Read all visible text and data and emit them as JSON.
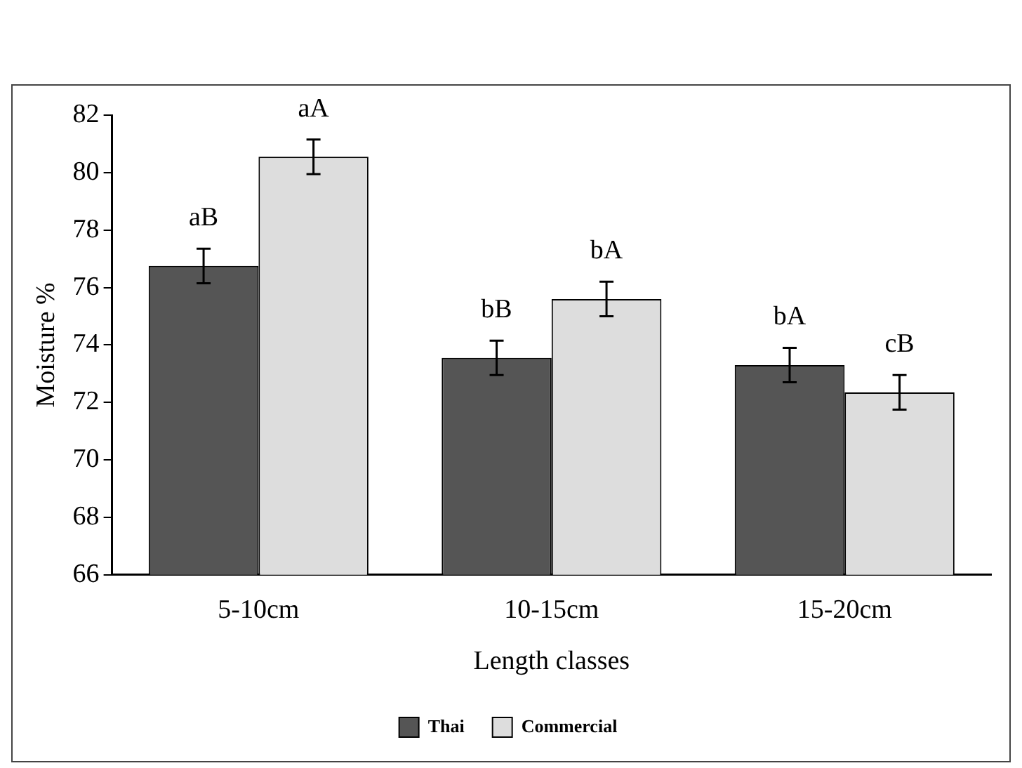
{
  "chart_data": {
    "type": "bar",
    "xlabel": "Length classes",
    "ylabel": "Moisture %",
    "categories": [
      "5-10cm",
      "10-15cm",
      "15-20cm"
    ],
    "series": [
      {
        "name": "Thai",
        "color": "#555555",
        "values": [
          76.75,
          73.55,
          73.3
        ],
        "errors": [
          0.6,
          0.6,
          0.6
        ],
        "value_labels": [
          "aB",
          "bB",
          "bA"
        ]
      },
      {
        "name": "Commercial",
        "color": "#dddddd",
        "values": [
          80.55,
          75.6,
          72.35
        ],
        "errors": [
          0.6,
          0.6,
          0.6
        ],
        "value_labels": [
          "aA",
          "bA",
          "cB"
        ]
      }
    ],
    "ylim": [
      66,
      82
    ],
    "yticks": [
      66,
      68,
      70,
      72,
      74,
      76,
      78,
      80,
      82
    ],
    "grid": false,
    "legend": "bottom"
  }
}
